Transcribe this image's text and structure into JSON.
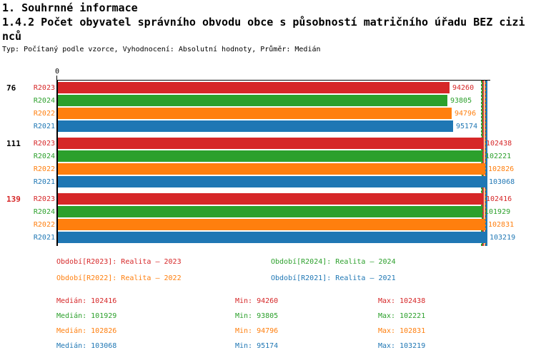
{
  "header": {
    "title": "1. Souhrnné informace",
    "subtitle_line1": "1.4.2 Počet obyvatel správního obvodu obce s působností matričního úřadu BEZ cizi",
    "subtitle_line2": "nců",
    "meta": "Typ: Počítaný podle vzorce, Vyhodnocení: Absolutní hodnoty, Průměr: Medián"
  },
  "chart_data": {
    "type": "bar",
    "orientation": "horizontal",
    "xlim": [
      0,
      103219
    ],
    "axis_zero_label": "0",
    "series": [
      {
        "id": "R2023",
        "label": "R2023",
        "color": "#d62728"
      },
      {
        "id": "R2024",
        "label": "R2024",
        "color": "#2ca02c"
      },
      {
        "id": "R2022",
        "label": "R2022",
        "color": "#ff7f0e"
      },
      {
        "id": "R2021",
        "label": "R2021",
        "color": "#1f77b4"
      }
    ],
    "groups": [
      {
        "label": "76",
        "label_color": "#000000",
        "values": {
          "R2023": 94260,
          "R2024": 93805,
          "R2022": 94796,
          "R2021": 95174
        }
      },
      {
        "label": "111",
        "label_color": "#000000",
        "values": {
          "R2023": 102438,
          "R2024": 102221,
          "R2022": 102826,
          "R2021": 103068
        }
      },
      {
        "label": "139",
        "label_color": "#d62728",
        "values": {
          "R2023": 102416,
          "R2024": 101929,
          "R2022": 102831,
          "R2021": 103219
        }
      }
    ],
    "marker_lines": {
      "max": {
        "R2023": 102438,
        "R2024": 102221,
        "R2022": 102831,
        "R2021": 103219
      },
      "median": {
        "R2023": 102416,
        "R2024": 101929,
        "R2022": 102826,
        "R2021": 103068
      }
    }
  },
  "legend": [
    {
      "text": "Období[R2023]: Realita – 2023",
      "color": "#d62728"
    },
    {
      "text": "Období[R2024]: Realita – 2024",
      "color": "#2ca02c"
    },
    {
      "text": "Období[R2022]: Realita – 2022",
      "color": "#ff7f0e"
    },
    {
      "text": "Období[R2021]: Realita – 2021",
      "color": "#1f77b4"
    }
  ],
  "stats": {
    "labels": {
      "median": "Medián",
      "min": "Min",
      "max": "Max"
    },
    "rows": [
      {
        "color": "#d62728",
        "median": "102416",
        "min": "94260",
        "max": "102438"
      },
      {
        "color": "#2ca02c",
        "median": "101929",
        "min": "93805",
        "max": "102221"
      },
      {
        "color": "#ff7f0e",
        "median": "102826",
        "min": "94796",
        "max": "102831"
      },
      {
        "color": "#1f77b4",
        "median": "103068",
        "min": "95174",
        "max": "103219"
      }
    ]
  }
}
